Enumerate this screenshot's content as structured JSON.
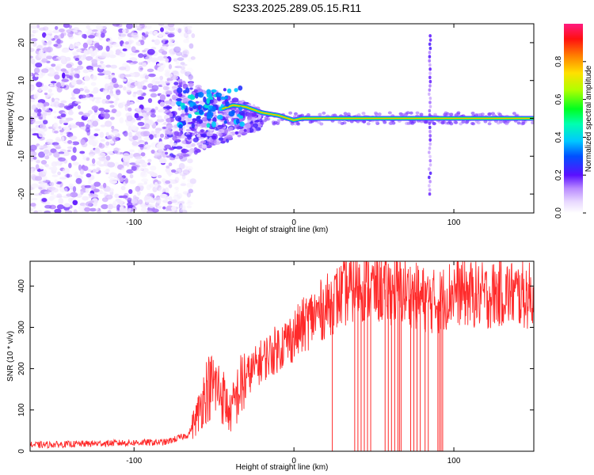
{
  "title": "S233.2025.289.05.15.R11",
  "colors": {
    "signal_line": "#ff1a1a",
    "snr_line": "#ff2a2a",
    "noise": "#7a1fff",
    "axis": "#000000"
  },
  "chart_data": [
    {
      "id": "spectrogram",
      "type": "heatmap",
      "xlabel": "Height of straight line (km)",
      "ylabel": "Frequency (Hz)",
      "xlim": [
        -165,
        150
      ],
      "ylim": [
        -25,
        25
      ],
      "x_ticks": [
        "-100",
        "0",
        "100"
      ],
      "x_tick_values": [
        -100,
        0,
        100
      ],
      "y_ticks": [
        "-20",
        "-10",
        "0",
        "10",
        "20"
      ],
      "y_tick_values": [
        -20,
        -10,
        0,
        10,
        20
      ],
      "colorbar": {
        "label": "Normalized spectral amplitude",
        "range": [
          0,
          1
        ],
        "ticks": [
          "0.0",
          "0.2",
          "0.4",
          "0.6",
          "0.8"
        ],
        "tick_values": [
          0.0,
          0.2,
          0.4,
          0.6,
          0.8
        ]
      },
      "ridge": {
        "x": [
          -45,
          -38,
          -30,
          -20,
          -10,
          0,
          5,
          15,
          30,
          50,
          70,
          84,
          100,
          150
        ],
        "freq": [
          2.5,
          3.5,
          3,
          1.5,
          0.8,
          -0.5,
          0,
          0,
          0,
          0,
          0,
          0,
          0,
          0
        ],
        "amplitude": [
          0.4,
          0.5,
          0.75,
          0.9,
          0.95,
          0.9,
          0.95,
          1,
          0.95,
          1,
          1,
          0.8,
          1,
          1
        ]
      },
      "noise_band": {
        "x": [
          -165,
          -75
        ],
        "freq": [
          -25,
          25
        ],
        "amplitude": [
          0.02,
          0.2
        ]
      },
      "vertical_band": {
        "x": 85,
        "freq": [
          -20,
          22
        ],
        "amplitude": 0.2
      }
    },
    {
      "id": "snr",
      "type": "line",
      "xlabel": "Height of straight line (km)",
      "ylabel": "SNR (10 * v/v)",
      "xlim": [
        -165,
        150
      ],
      "ylim": [
        0,
        460
      ],
      "x_ticks": [
        "-100",
        "0",
        "100"
      ],
      "x_tick_values": [
        -100,
        0,
        100
      ],
      "y_ticks": [
        "0",
        "100",
        "200",
        "300",
        "400"
      ],
      "y_tick_values": [
        0,
        100,
        200,
        300,
        400
      ],
      "x": [
        -165,
        -140,
        -110,
        -80,
        -66,
        -60,
        -55,
        -50,
        -45,
        -40,
        -35,
        -30,
        -20,
        -10,
        0,
        10,
        20,
        30,
        40,
        50,
        60,
        70,
        80,
        90,
        100,
        110,
        120,
        130,
        140,
        150
      ],
      "y": [
        15,
        17,
        20,
        22,
        40,
        90,
        150,
        160,
        140,
        90,
        140,
        180,
        220,
        250,
        280,
        320,
        350,
        380,
        400,
        395,
        390,
        385,
        370,
        360,
        390,
        380,
        375,
        385,
        380,
        375
      ],
      "dropouts": [
        24,
        38,
        40,
        42,
        44,
        46,
        48,
        57,
        59,
        61,
        63,
        65,
        66,
        67,
        73,
        75,
        77,
        79,
        82,
        84,
        90,
        91,
        92,
        93
      ]
    }
  ]
}
